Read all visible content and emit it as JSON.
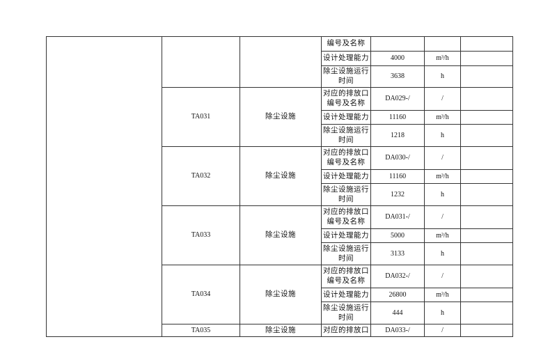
{
  "first_group_partial": {
    "rows": [
      {
        "label": "编号及名称",
        "value": "",
        "unit": ""
      },
      {
        "label": "设计处理能力",
        "value": "4000",
        "unit": "m³/h"
      },
      {
        "label": "除尘设施运行时间",
        "value": "3638",
        "unit": "h"
      }
    ]
  },
  "groups": [
    {
      "id": "TA031",
      "type": "除尘设施",
      "rows": [
        {
          "label": "对应的排放口编号及名称",
          "value": "DA029-/",
          "unit": "/"
        },
        {
          "label": "设计处理能力",
          "value": "11160",
          "unit": "m³/h"
        },
        {
          "label": "除尘设施运行时间",
          "value": "1218",
          "unit": "h"
        }
      ]
    },
    {
      "id": "TA032",
      "type": "除尘设施",
      "rows": [
        {
          "label": "对应的排放口编号及名称",
          "value": "DA030-/",
          "unit": "/"
        },
        {
          "label": "设计处理能力",
          "value": "11160",
          "unit": "m³/h"
        },
        {
          "label": "除尘设施运行时间",
          "value": "1232",
          "unit": "h"
        }
      ]
    },
    {
      "id": "TA033",
      "type": "除尘设施",
      "rows": [
        {
          "label": "对应的排放口编号及名称",
          "value": "DA031-/",
          "unit": "/"
        },
        {
          "label": "设计处理能力",
          "value": "5000",
          "unit": "m³/h"
        },
        {
          "label": "除尘设施运行时间",
          "value": "3133",
          "unit": "h"
        }
      ]
    },
    {
      "id": "TA034",
      "type": "除尘设施",
      "rows": [
        {
          "label": "对应的排放口编号及名称",
          "value": "DA032-/",
          "unit": "/"
        },
        {
          "label": "设计处理能力",
          "value": "26800",
          "unit": "m³/h"
        },
        {
          "label": "除尘设施运行时间",
          "value": "444",
          "unit": "h"
        }
      ]
    },
    {
      "id": "TA035",
      "type": "除尘设施",
      "rows": [
        {
          "label": "对应的排放口",
          "value": "DA033-/",
          "unit": "/"
        }
      ]
    }
  ]
}
